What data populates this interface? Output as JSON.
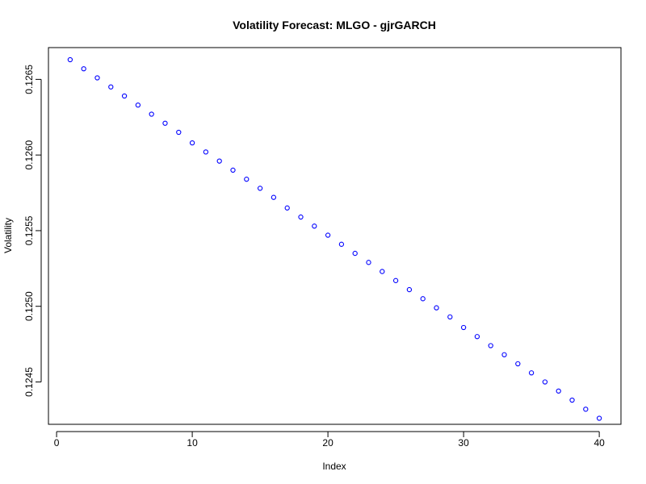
{
  "chart_data": {
    "type": "scatter",
    "title": "Volatility Forecast: MLGO - gjrGARCH",
    "xlabel": "Index",
    "ylabel": "Volatility",
    "xlim": [
      -0.6,
      41.6
    ],
    "ylim": [
      0.12422,
      0.12671
    ],
    "xticks": [
      0,
      10,
      20,
      30,
      40
    ],
    "xtick_labels": [
      "0",
      "10",
      "20",
      "30",
      "40"
    ],
    "yticks": [
      0.1245,
      0.125,
      0.1255,
      0.126,
      0.1265
    ],
    "ytick_labels": [
      "0.1245",
      "0.1250",
      "0.1255",
      "0.1260",
      "0.1265"
    ],
    "grid": false,
    "point_color": "#0000ff",
    "series": [
      {
        "x": [
          1,
          2,
          3,
          4,
          5,
          6,
          7,
          8,
          9,
          10,
          11,
          12,
          13,
          14,
          15,
          16,
          17,
          18,
          19,
          20,
          21,
          22,
          23,
          24,
          25,
          26,
          27,
          28,
          29,
          30,
          31,
          32,
          33,
          34,
          35,
          36,
          37,
          38,
          39,
          40
        ],
        "values": [
          0.12663,
          0.12657,
          0.12651,
          0.12645,
          0.12639,
          0.12633,
          0.12627,
          0.12621,
          0.12615,
          0.12608,
          0.12602,
          0.12596,
          0.1259,
          0.12584,
          0.12578,
          0.12572,
          0.12565,
          0.12559,
          0.12553,
          0.12547,
          0.12541,
          0.12535,
          0.12529,
          0.12523,
          0.12517,
          0.12511,
          0.12505,
          0.12499,
          0.12493,
          0.12486,
          0.1248,
          0.12474,
          0.12468,
          0.12462,
          0.12456,
          0.1245,
          0.12444,
          0.12438,
          0.12432,
          0.12426
        ]
      }
    ]
  }
}
